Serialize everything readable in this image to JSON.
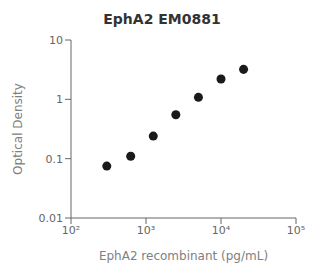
{
  "chart_data": {
    "type": "scatter",
    "title": "EphA2 EM0881",
    "xlabel": "EphA2 recombinant (pg/mL)",
    "ylabel": "Optical Density",
    "x": [
      300,
      625,
      1250,
      2500,
      5000,
      10000,
      20000
    ],
    "values": [
      0.075,
      0.11,
      0.24,
      0.55,
      1.08,
      2.2,
      3.2
    ],
    "xlim": [
      100,
      100000
    ],
    "ylim": [
      0.01,
      10
    ],
    "xticks": [
      {
        "value": 100,
        "label": "10²"
      },
      {
        "value": 1000,
        "label": "10³"
      },
      {
        "value": 10000,
        "label": "10⁴"
      },
      {
        "value": 100000,
        "label": "10⁵"
      }
    ],
    "yticks": [
      0.01,
      0.1,
      1,
      10
    ],
    "log": true,
    "grid": false,
    "color": "#1a1a1a",
    "marker": "circle"
  }
}
